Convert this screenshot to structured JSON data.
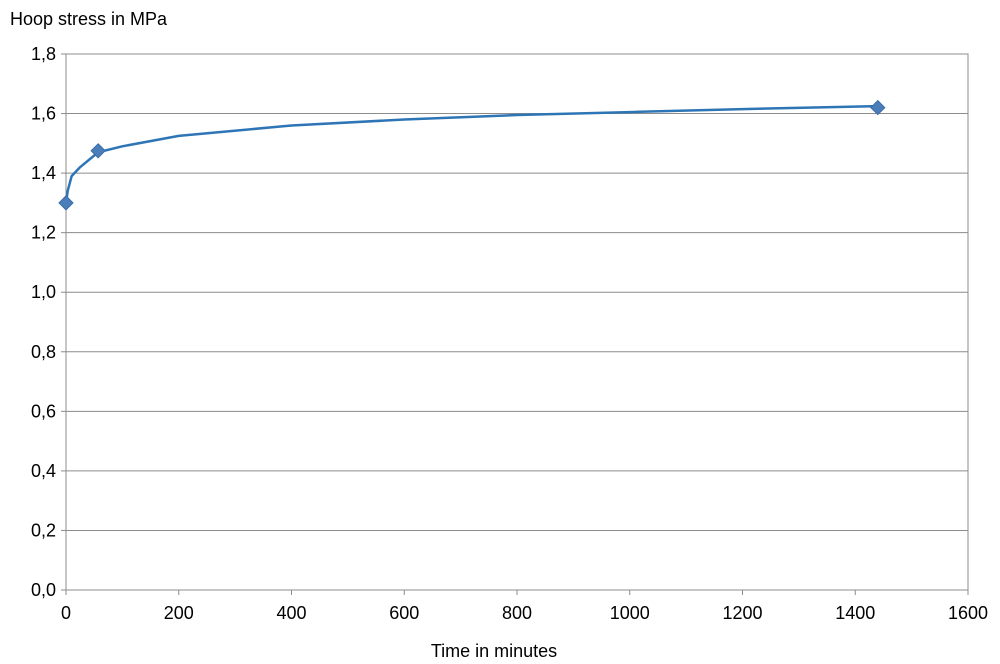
{
  "chart_data": {
    "type": "scatter",
    "ylabel": "Hoop stress in MPa",
    "xlabel": "Time in minutes",
    "xlim": [
      0,
      1600
    ],
    "ylim": [
      0,
      1.8
    ],
    "x_ticks": [
      "0",
      "200",
      "400",
      "600",
      "800",
      "1000",
      "1200",
      "1400",
      "1600"
    ],
    "y_ticks": [
      "0,0",
      "0,2",
      "0,4",
      "0,6",
      "0,8",
      "1,0",
      "1,2",
      "1,4",
      "1,6",
      "1,8"
    ],
    "grid": "horizontal",
    "series": [
      {
        "marker": "diamond",
        "color": "#4a7ebb",
        "points": [
          {
            "x": 0,
            "y": 1.3
          },
          {
            "x": 57,
            "y": 1.475
          },
          {
            "x": 1440,
            "y": 1.62
          }
        ]
      }
    ],
    "trendline": {
      "type": "logarithmic",
      "color": "#2e75b6",
      "points": [
        {
          "x": 0,
          "y": 1.3
        },
        {
          "x": 3,
          "y": 1.34
        },
        {
          "x": 10,
          "y": 1.39
        },
        {
          "x": 25,
          "y": 1.42
        },
        {
          "x": 57,
          "y": 1.47
        },
        {
          "x": 100,
          "y": 1.49
        },
        {
          "x": 200,
          "y": 1.525
        },
        {
          "x": 400,
          "y": 1.56
        },
        {
          "x": 600,
          "y": 1.58
        },
        {
          "x": 800,
          "y": 1.595
        },
        {
          "x": 1000,
          "y": 1.605
        },
        {
          "x": 1200,
          "y": 1.615
        },
        {
          "x": 1440,
          "y": 1.625
        }
      ]
    }
  }
}
